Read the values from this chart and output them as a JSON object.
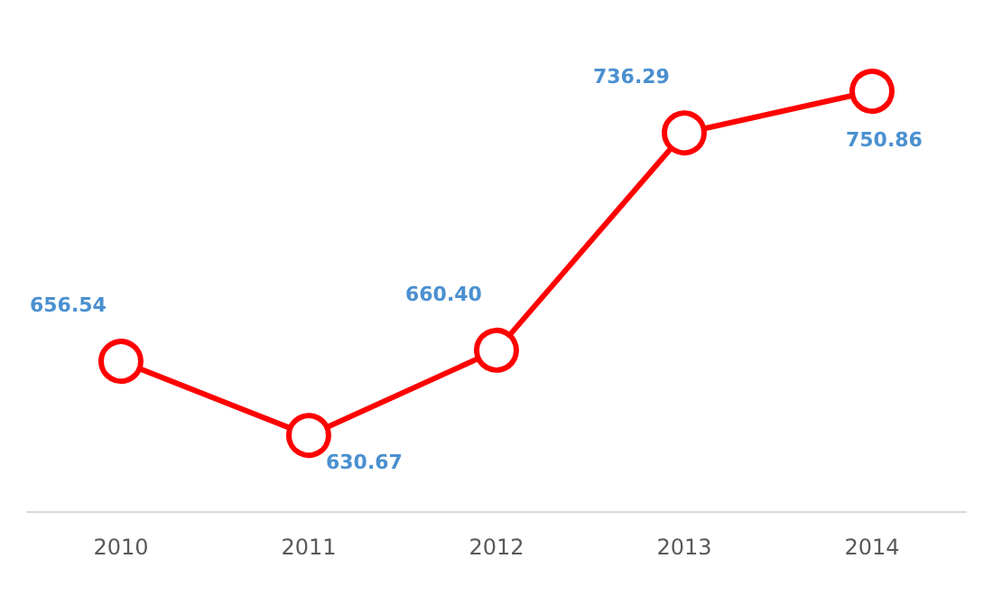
{
  "chart_data": {
    "type": "line",
    "categories": [
      "2010",
      "2011",
      "2012",
      "2013",
      "2014"
    ],
    "series": [
      {
        "color": "#ff0000",
        "values": [
          656.54,
          630.67,
          660.4,
          736.29,
          750.86
        ],
        "value_labels": [
          "656.54",
          "630.67",
          "660.40",
          "736.29",
          "750.86"
        ]
      }
    ],
    "marker": "circle"
  }
}
